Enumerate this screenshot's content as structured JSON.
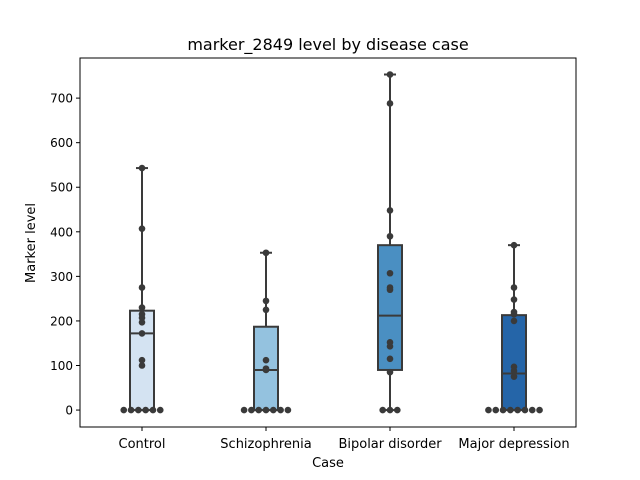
{
  "chart_data": {
    "type": "box",
    "title": "marker_2849 level by disease case",
    "xlabel": "Case",
    "ylabel": "Marker level",
    "ylim": [
      -38,
      790
    ],
    "yticks": [
      0,
      100,
      200,
      300,
      400,
      500,
      600,
      700
    ],
    "categories": [
      "Control",
      "Schizophrenia",
      "Bipolar disorder",
      "Major depression"
    ],
    "colors": [
      "#d4e3f2",
      "#94c2df",
      "#4a8fc2",
      "#2565a8"
    ],
    "boxes": [
      {
        "category": "Control",
        "q1": 0,
        "median": 172,
        "q3": 223,
        "whisker_low": 0,
        "whisker_high": 543
      },
      {
        "category": "Schizophrenia",
        "q1": 0,
        "median": 90,
        "q3": 187,
        "whisker_low": 0,
        "whisker_high": 353
      },
      {
        "category": "Bipolar disorder",
        "q1": 90,
        "median": 212,
        "q3": 370,
        "whisker_low": 0,
        "whisker_high": 753
      },
      {
        "category": "Major depression",
        "q1": 0,
        "median": 82,
        "q3": 213,
        "whisker_low": 0,
        "whisker_high": 370
      }
    ],
    "points": [
      {
        "category": "Control",
        "values": [
          0,
          0,
          0,
          0,
          0,
          0,
          100,
          112,
          172,
          197,
          207,
          215,
          230,
          275,
          407,
          543
        ]
      },
      {
        "category": "Schizophrenia",
        "values": [
          0,
          0,
          0,
          0,
          0,
          0,
          0,
          90,
          93,
          112,
          225,
          245,
          353
        ]
      },
      {
        "category": "Bipolar disorder",
        "values": [
          0,
          0,
          0,
          85,
          115,
          143,
          152,
          270,
          275,
          307,
          390,
          448,
          688,
          753
        ]
      },
      {
        "category": "Major depression",
        "values": [
          0,
          0,
          0,
          0,
          0,
          0,
          0,
          0,
          75,
          88,
          97,
          200,
          215,
          220,
          248,
          275,
          370
        ]
      }
    ]
  }
}
